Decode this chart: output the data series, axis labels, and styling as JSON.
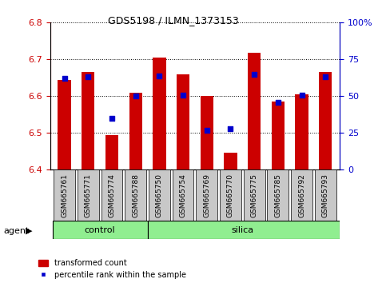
{
  "title": "GDS5198 / ILMN_1373153",
  "samples": [
    "GSM665761",
    "GSM665771",
    "GSM665774",
    "GSM665788",
    "GSM665750",
    "GSM665754",
    "GSM665769",
    "GSM665770",
    "GSM665775",
    "GSM665785",
    "GSM665792",
    "GSM665793"
  ],
  "groups": [
    "control",
    "control",
    "control",
    "control",
    "silica",
    "silica",
    "silica",
    "silica",
    "silica",
    "silica",
    "silica",
    "silica"
  ],
  "transformed_count": [
    6.645,
    6.665,
    6.495,
    6.61,
    6.705,
    6.66,
    6.6,
    6.447,
    6.718,
    6.585,
    6.605,
    6.665
  ],
  "percentile_rank": [
    62,
    63,
    35,
    50,
    64,
    51,
    27,
    28,
    65,
    46,
    51,
    63
  ],
  "y_min": 6.4,
  "y_max": 6.8,
  "y_ticks_left": [
    6.4,
    6.5,
    6.6,
    6.7,
    6.8
  ],
  "y_ticks_right": [
    0,
    25,
    50,
    75,
    100
  ],
  "bar_color": "#CC0000",
  "dot_color": "#0000CC",
  "group_color": "#90EE90",
  "agent_label": "agent",
  "legend_bar": "transformed count",
  "legend_dot": "percentile rank within the sample",
  "tick_label_bg": "#C8C8C8"
}
